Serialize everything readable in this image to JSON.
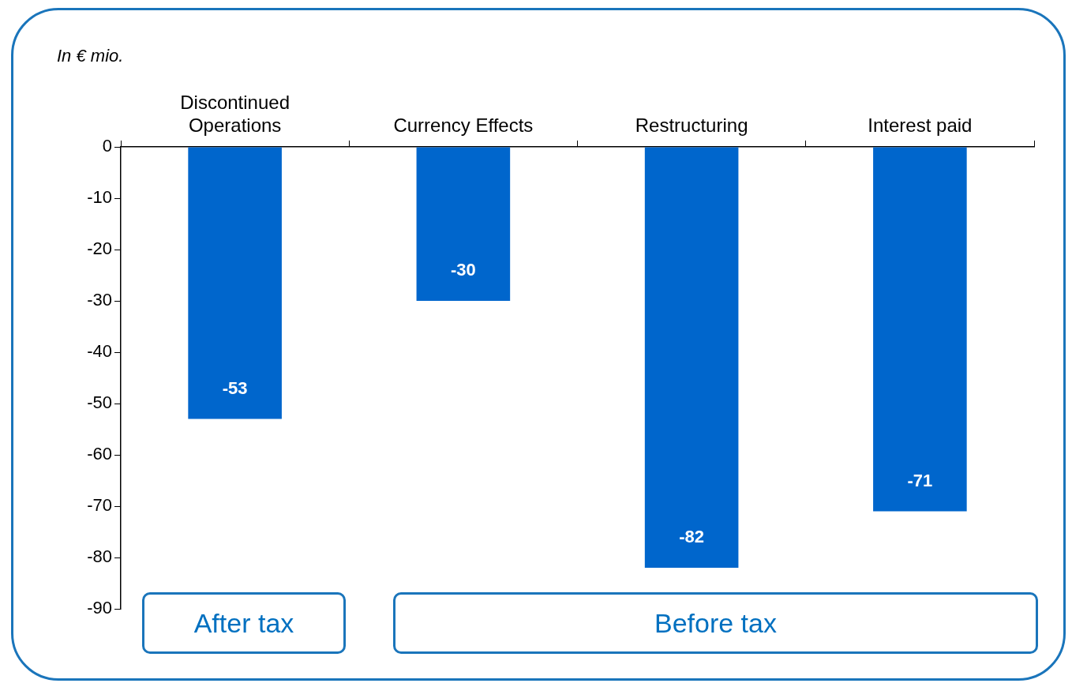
{
  "chart_data": {
    "type": "bar",
    "categories": [
      "Discontinued Operations",
      "Currency Effects",
      "Restructuring",
      "Interest paid"
    ],
    "values": [
      -53,
      -30,
      -82,
      -71
    ],
    "color": "#0066cc",
    "ylim": [
      -90,
      0
    ],
    "yticks": [
      0,
      -10,
      -20,
      -30,
      -40,
      -50,
      -60,
      -70,
      -80,
      -90
    ],
    "grid": false,
    "legend": false,
    "data_labels": true,
    "annotations": [
      "In € mio.",
      "After tax",
      "Before tax"
    ]
  }
}
